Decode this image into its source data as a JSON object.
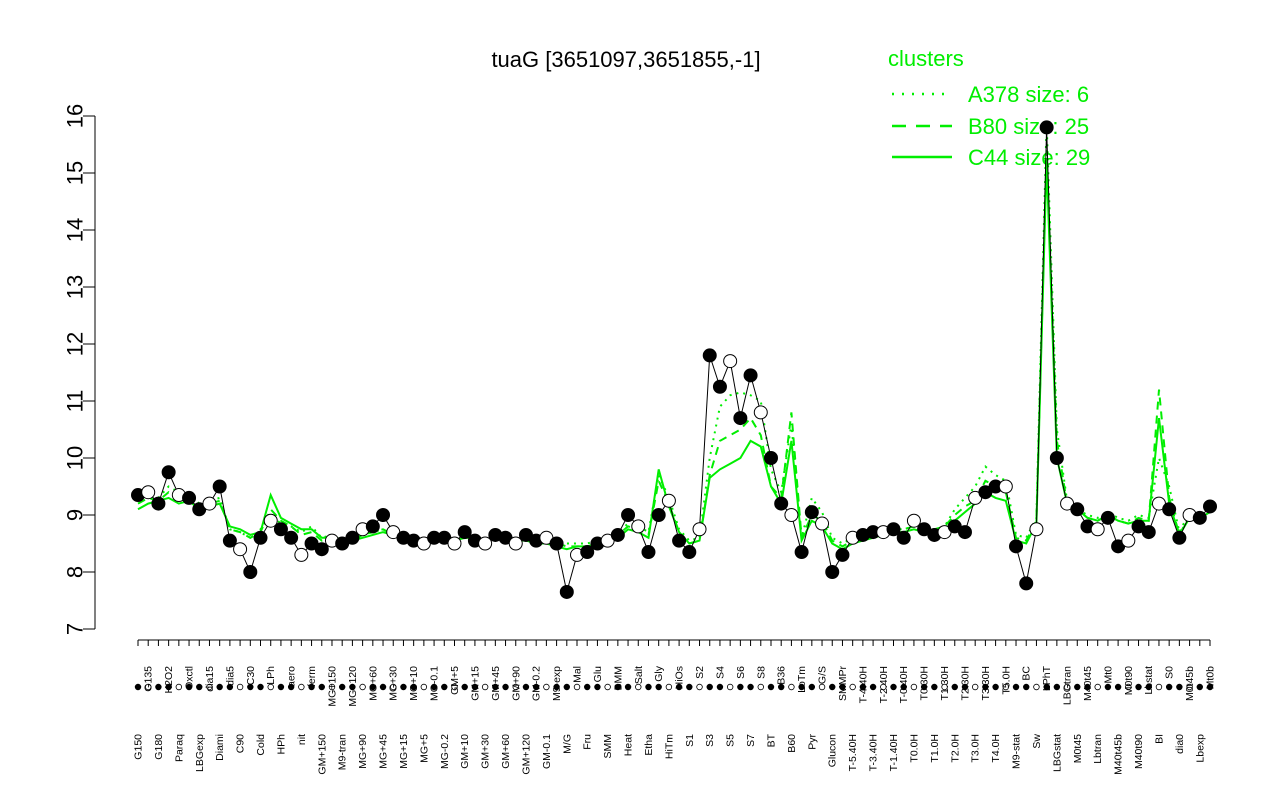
{
  "chart_data": {
    "type": "line",
    "title": "tuaG [3651097,3651855,-1]",
    "xlabel": "",
    "ylabel": "",
    "ylim": [
      7,
      16
    ],
    "yticks": [
      7,
      8,
      9,
      10,
      11,
      12,
      13,
      14,
      15,
      16
    ],
    "grid": false,
    "legend": {
      "placement": "top-right",
      "title": "clusters",
      "color": "#00ee00",
      "entries": [
        {
          "label": "A378 size: 6",
          "style": "dotted"
        },
        {
          "label": "B80 size: 25",
          "style": "dashed"
        },
        {
          "label": "C44 size: 29",
          "style": "solid"
        }
      ]
    },
    "tick_labels_upper": [
      "G150",
      "G135",
      "G180",
      "H2O2",
      "Paraq",
      "Oxctl",
      "LBGexp",
      "dia15",
      "Diami",
      "dia5",
      "C90",
      "C30",
      "Cold",
      "LPh",
      "HPh",
      "aero",
      "nit",
      "ferm",
      "GM+150",
      "MG+150",
      "M9-tran",
      "MG+120",
      "MG+90",
      "MG+60",
      "MG+45",
      "MG+30",
      "MG+15",
      "MG+10",
      "MG+5",
      "MG-0.1",
      "MG-0.2",
      "GM+5",
      "GM+10",
      "GM+15",
      "GM+30",
      "GM+45",
      "GM+60",
      "GM+90",
      "GM+120",
      "GM-0.2",
      "GM-0.1",
      "M9-exp",
      "M/G",
      "Mal",
      "Fru",
      "Glu",
      "SMM",
      "BMM",
      "Heat",
      "Salt",
      "Etha",
      "Gly",
      "HiTm",
      "HiOs",
      "S1",
      "S2",
      "S3",
      "S4",
      "S5",
      "S6",
      "S7",
      "S8",
      "BT",
      "B36",
      "B60",
      "LoTm",
      "Pyr",
      "G/S",
      "Glucon",
      "SMMPr",
      "T-5.40H",
      "T-4.40H",
      "T-3.40H",
      "T-2.40H",
      "T-1.40H",
      "T-0.40H",
      "T0.0H",
      "T0.30H",
      "T1.0H",
      "T1.30H",
      "T2.0H",
      "T2.30H",
      "T3.0H",
      "T3.30H",
      "T4.0H",
      "T5.0H",
      "M9-stat",
      "BC",
      "Sw",
      "LPhT",
      "LBGstat",
      "LBGtran",
      "M0t45",
      "M40t45",
      "Lbtran",
      "Mt0",
      "M40t45b",
      "M0t90",
      "M40t90",
      "Lbstat",
      "BI",
      "S0",
      "dia0",
      "M0t45b",
      "Lbexp",
      "Mt0b"
    ],
    "points": {
      "color_filled": "#000000",
      "color_open": "#ffffff",
      "values": [
        9.35,
        9.4,
        9.2,
        9.75,
        9.35,
        9.3,
        9.1,
        9.2,
        9.5,
        8.55,
        8.4,
        8.0,
        8.6,
        8.9,
        8.75,
        8.6,
        8.3,
        8.5,
        8.4,
        8.55,
        8.5,
        8.6,
        8.75,
        8.8,
        9.0,
        8.7,
        8.6,
        8.55,
        8.5,
        8.6,
        8.6,
        8.5,
        8.7,
        8.55,
        8.5,
        8.65,
        8.6,
        8.5,
        8.65,
        8.55,
        8.6,
        8.5,
        7.65,
        8.3,
        8.35,
        8.5,
        8.55,
        8.65,
        9.0,
        8.8,
        8.35,
        9.0,
        9.25,
        8.55,
        8.35,
        8.75,
        11.8,
        11.25,
        11.7,
        10.7,
        11.45,
        10.8,
        10.0,
        9.2,
        9.0,
        8.35,
        9.05,
        8.85,
        8.0,
        8.3,
        8.6,
        8.65,
        8.7,
        8.7,
        8.75,
        8.6,
        8.9,
        8.75,
        8.65,
        8.7,
        8.8,
        8.7,
        9.3,
        9.4,
        9.5,
        9.5,
        8.45,
        7.8,
        8.75,
        15.8,
        10.0,
        9.2,
        9.1,
        8.8,
        8.75,
        8.95,
        8.45,
        8.55,
        8.8,
        8.7,
        9.2,
        9.1,
        8.6,
        9.0,
        8.95,
        9.15
      ]
    },
    "series": [
      {
        "name": "A378 size: 6",
        "style": "dotted",
        "color": "#00ee00",
        "values": [
          9.3,
          9.35,
          9.3,
          9.5,
          9.4,
          9.35,
          9.2,
          9.25,
          9.3,
          8.75,
          8.7,
          8.6,
          8.75,
          9.0,
          8.85,
          8.8,
          8.7,
          8.8,
          8.6,
          8.65,
          8.55,
          8.55,
          8.65,
          8.7,
          8.75,
          8.65,
          8.6,
          8.6,
          8.55,
          8.6,
          8.6,
          8.55,
          8.6,
          8.6,
          8.55,
          8.6,
          8.6,
          8.55,
          8.6,
          8.55,
          8.55,
          8.5,
          8.5,
          8.5,
          8.5,
          8.55,
          8.6,
          8.7,
          8.85,
          8.8,
          8.7,
          9.7,
          9.3,
          8.75,
          8.55,
          8.6,
          10.0,
          10.9,
          11.1,
          11.15,
          11.1,
          11.0,
          9.8,
          9.4,
          10.6,
          8.6,
          9.3,
          9.05,
          8.6,
          8.5,
          8.6,
          8.65,
          8.7,
          8.7,
          8.75,
          8.75,
          8.8,
          8.75,
          8.75,
          8.8,
          9.1,
          9.3,
          9.5,
          9.85,
          9.7,
          9.6,
          8.65,
          8.6,
          8.95,
          15.9,
          10.5,
          9.25,
          9.1,
          9.0,
          8.95,
          9.05,
          8.95,
          8.9,
          9.0,
          8.95,
          10.0,
          9.5,
          8.7,
          9.05,
          9.0,
          9.1
        ]
      },
      {
        "name": "B80 size: 25",
        "style": "dashed",
        "color": "#00ee00",
        "values": [
          9.2,
          9.3,
          9.25,
          9.4,
          9.3,
          9.3,
          9.15,
          9.2,
          9.25,
          8.75,
          8.7,
          8.6,
          8.7,
          9.1,
          8.9,
          8.8,
          8.65,
          8.7,
          8.55,
          8.6,
          8.55,
          8.55,
          8.65,
          8.7,
          8.75,
          8.65,
          8.6,
          8.6,
          8.55,
          8.6,
          8.6,
          8.55,
          8.6,
          8.6,
          8.55,
          8.6,
          8.6,
          8.55,
          8.6,
          8.55,
          8.55,
          8.5,
          8.45,
          8.45,
          8.45,
          8.5,
          8.55,
          8.65,
          8.8,
          8.75,
          8.65,
          9.6,
          9.2,
          8.7,
          8.5,
          8.55,
          9.7,
          10.3,
          10.4,
          10.5,
          10.7,
          10.4,
          9.5,
          9.3,
          10.8,
          8.6,
          9.0,
          8.9,
          8.55,
          8.45,
          8.55,
          8.6,
          8.65,
          8.7,
          8.75,
          8.75,
          8.8,
          8.75,
          8.75,
          8.8,
          9.0,
          9.15,
          9.25,
          9.6,
          9.5,
          9.4,
          8.6,
          8.55,
          8.9,
          15.4,
          10.3,
          9.2,
          9.1,
          8.95,
          8.9,
          9.0,
          8.9,
          8.85,
          8.95,
          8.9,
          11.2,
          9.3,
          8.65,
          9.0,
          8.95,
          9.05
        ]
      },
      {
        "name": "C44 size: 29",
        "style": "solid",
        "color": "#00ee00",
        "values": [
          9.1,
          9.2,
          9.25,
          9.3,
          9.2,
          9.25,
          9.1,
          9.15,
          9.2,
          8.8,
          8.75,
          8.65,
          8.7,
          9.35,
          8.95,
          8.85,
          8.75,
          8.75,
          8.6,
          8.6,
          8.55,
          8.55,
          8.6,
          8.65,
          8.7,
          8.65,
          8.6,
          8.6,
          8.55,
          8.6,
          8.6,
          8.55,
          8.6,
          8.6,
          8.55,
          8.6,
          8.6,
          8.55,
          8.55,
          8.5,
          8.5,
          8.45,
          8.4,
          8.45,
          8.45,
          8.5,
          8.55,
          8.6,
          8.75,
          8.7,
          8.6,
          9.8,
          9.15,
          8.7,
          8.5,
          8.55,
          9.65,
          9.8,
          9.9,
          10.0,
          10.3,
          10.2,
          9.5,
          9.2,
          10.3,
          8.55,
          8.9,
          8.8,
          8.5,
          8.4,
          8.5,
          8.55,
          8.6,
          8.65,
          8.7,
          8.7,
          8.75,
          8.7,
          8.7,
          8.75,
          8.9,
          9.05,
          9.2,
          9.4,
          9.3,
          9.25,
          8.55,
          8.5,
          8.85,
          15.2,
          10.0,
          9.2,
          9.1,
          8.95,
          8.9,
          9.0,
          8.9,
          8.85,
          8.9,
          8.9,
          10.7,
          9.2,
          8.65,
          8.95,
          8.95,
          9.05
        ]
      }
    ]
  }
}
